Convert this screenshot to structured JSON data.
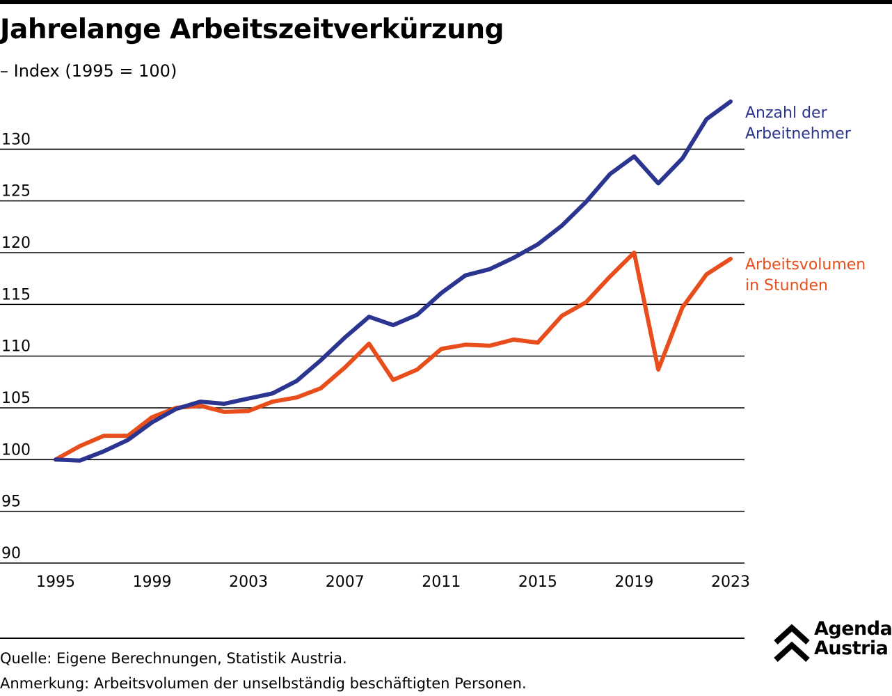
{
  "header": {
    "title": "Jahrelange Arbeitszeitverkürzung",
    "subtitle": "– Index (1995 = 100)"
  },
  "chart_data": {
    "type": "line",
    "title": "Jahrelange Arbeitszeitverkürzung",
    "subtitle": "– Index (1995 = 100)",
    "xlabel": "",
    "ylabel": "",
    "x": [
      1995,
      1996,
      1997,
      1998,
      1999,
      2000,
      2001,
      2002,
      2003,
      2004,
      2005,
      2006,
      2007,
      2008,
      2009,
      2010,
      2011,
      2012,
      2013,
      2014,
      2015,
      2016,
      2017,
      2018,
      2019,
      2020,
      2021,
      2022,
      2023
    ],
    "xticks": [
      "1995",
      "1999",
      "2003",
      "2007",
      "2011",
      "2015",
      "2019",
      "2023"
    ],
    "xlim": [
      1995,
      2023
    ],
    "ylim": [
      90,
      135
    ],
    "yticks": [
      "90",
      "95",
      "100",
      "105",
      "110",
      "115",
      "120",
      "125",
      "130"
    ],
    "grid": "horizontal",
    "legend": "direct labels at right end of lines",
    "series": [
      {
        "name": "Anzahl der Arbeitnehmer",
        "label_lines": [
          "Anzahl der",
          "Arbeitnehmer"
        ],
        "color": "#2b3590",
        "values": [
          100.0,
          99.9,
          100.8,
          101.9,
          103.6,
          104.9,
          105.6,
          105.4,
          105.9,
          106.4,
          107.6,
          109.6,
          111.8,
          113.8,
          113.0,
          114.0,
          116.1,
          117.8,
          118.4,
          119.5,
          120.8,
          122.6,
          124.9,
          127.6,
          129.3,
          126.7,
          129.1,
          132.9,
          134.6
        ]
      },
      {
        "name": "Arbeitsvolumen in Stunden",
        "label_lines": [
          "Arbeitsvolumen",
          "in Stunden"
        ],
        "color": "#e84e1b",
        "values": [
          100.0,
          101.3,
          102.3,
          102.3,
          104.1,
          105.0,
          105.2,
          104.6,
          104.7,
          105.6,
          106.0,
          106.9,
          108.9,
          111.2,
          107.7,
          108.7,
          110.7,
          111.1,
          111.0,
          111.6,
          111.3,
          113.9,
          115.2,
          117.7,
          120.0,
          108.7,
          114.7,
          117.9,
          119.4
        ]
      }
    ]
  },
  "footer": {
    "source": "Quelle: Eigene Berechnungen, Statistik Austria.",
    "remark": "Anmerkung: Arbeitsvolumen der unselbständig beschäftigten Personen."
  },
  "logo": {
    "line1": "Agenda",
    "line2": "Austria",
    "icon": "double-chevron-up-icon"
  }
}
